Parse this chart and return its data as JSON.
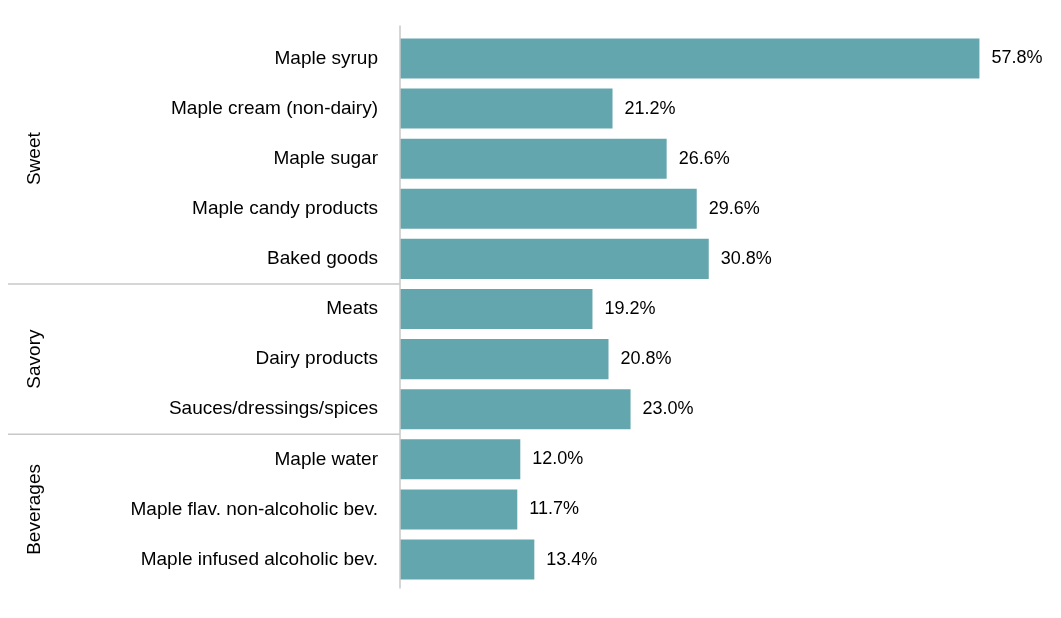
{
  "chart_data": {
    "type": "bar",
    "orientation": "horizontal",
    "categories": [
      "Maple syrup",
      "Maple cream (non-dairy)",
      "Maple sugar",
      "Maple candy products",
      "Baked goods",
      "Meats",
      "Dairy products",
      "Sauces/dressings/spices",
      "Maple water",
      "Maple flav. non-alcoholic bev.",
      "Maple infused alcoholic bev."
    ],
    "values": [
      57.8,
      21.2,
      26.6,
      29.6,
      30.8,
      19.2,
      20.8,
      23.0,
      12.0,
      11.7,
      13.4
    ],
    "value_labels": [
      "57.8%",
      "21.2%",
      "26.6%",
      "29.6%",
      "30.8%",
      "19.2%",
      "20.8%",
      "23.0%",
      "12.0%",
      "11.7%",
      "13.4%"
    ],
    "color": "#64a6ae",
    "annotations": [
      "Sweet",
      "Savory",
      "Beverages"
    ],
    "legend": false,
    "tick_labels": "y"
  }
}
